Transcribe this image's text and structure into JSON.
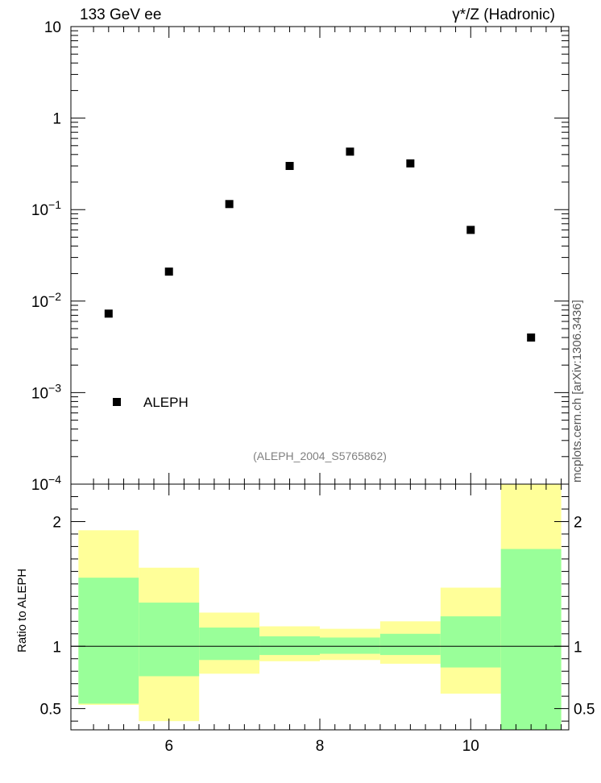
{
  "header": {
    "left": "133 GeV ee",
    "right": "γ*/Z (Hadronic)"
  },
  "side_label": "mcplots.cern.ch [arXiv:1306.3436]",
  "chart_data": [
    {
      "type": "scatter",
      "ylog": true,
      "ylim": [
        0.0001,
        10
      ],
      "xlim": [
        4.7,
        11.3
      ],
      "y_ticks": [
        "10^-4",
        "10^-3",
        "10^-2",
        "10^-1",
        "1",
        "10"
      ],
      "series": [
        {
          "name": "ALEPH",
          "x": [
            5.2,
            6.0,
            6.8,
            7.6,
            8.4,
            9.2,
            10.0,
            10.8
          ],
          "y": [
            0.0073,
            0.021,
            0.115,
            0.3,
            0.43,
            0.32,
            0.06,
            0.004
          ],
          "marker": "square",
          "color": "#000000"
        }
      ],
      "legend": {
        "entries": [
          "ALEPH"
        ],
        "placement": "bottom-left"
      },
      "annotation": "(ALEPH_2004_S5765862)",
      "annotation_color": "#808080"
    },
    {
      "type": "bar",
      "ylabel": "Ratio to ALEPH",
      "ylim": [
        0.33,
        2.3
      ],
      "xlim": [
        4.7,
        11.3
      ],
      "x_ticks": [
        "6",
        "8",
        "10"
      ],
      "y_ticks": [
        "0.5",
        "1",
        "2"
      ],
      "reference_line": 1,
      "bins": [
        {
          "xlo": 4.8,
          "xhi": 5.6,
          "band_lo": 0.53,
          "band_hi": 1.93,
          "inner_lo": 0.54,
          "inner_hi": 1.55
        },
        {
          "xlo": 5.6,
          "xhi": 6.4,
          "band_lo": 0.4,
          "band_hi": 1.63,
          "inner_lo": 0.76,
          "inner_hi": 1.35
        },
        {
          "xlo": 6.4,
          "xhi": 7.2,
          "band_lo": 0.78,
          "band_hi": 1.27,
          "inner_lo": 0.89,
          "inner_hi": 1.15
        },
        {
          "xlo": 7.2,
          "xhi": 8.0,
          "band_lo": 0.88,
          "band_hi": 1.16,
          "inner_lo": 0.93,
          "inner_hi": 1.08
        },
        {
          "xlo": 8.0,
          "xhi": 8.8,
          "band_lo": 0.89,
          "band_hi": 1.14,
          "inner_lo": 0.94,
          "inner_hi": 1.07
        },
        {
          "xlo": 8.8,
          "xhi": 9.6,
          "band_lo": 0.86,
          "band_hi": 1.2,
          "inner_lo": 0.93,
          "inner_hi": 1.1
        },
        {
          "xlo": 9.6,
          "xhi": 10.4,
          "band_lo": 0.62,
          "band_hi": 1.47,
          "inner_lo": 0.83,
          "inner_hi": 1.24
        },
        {
          "xlo": 10.4,
          "xhi": 11.2,
          "band_lo": 0.33,
          "band_hi": 2.3,
          "inner_lo": 0.33,
          "inner_hi": 1.78
        }
      ],
      "colors": {
        "outer_band": "#ffff99",
        "inner_band": "#99ff99"
      }
    }
  ]
}
